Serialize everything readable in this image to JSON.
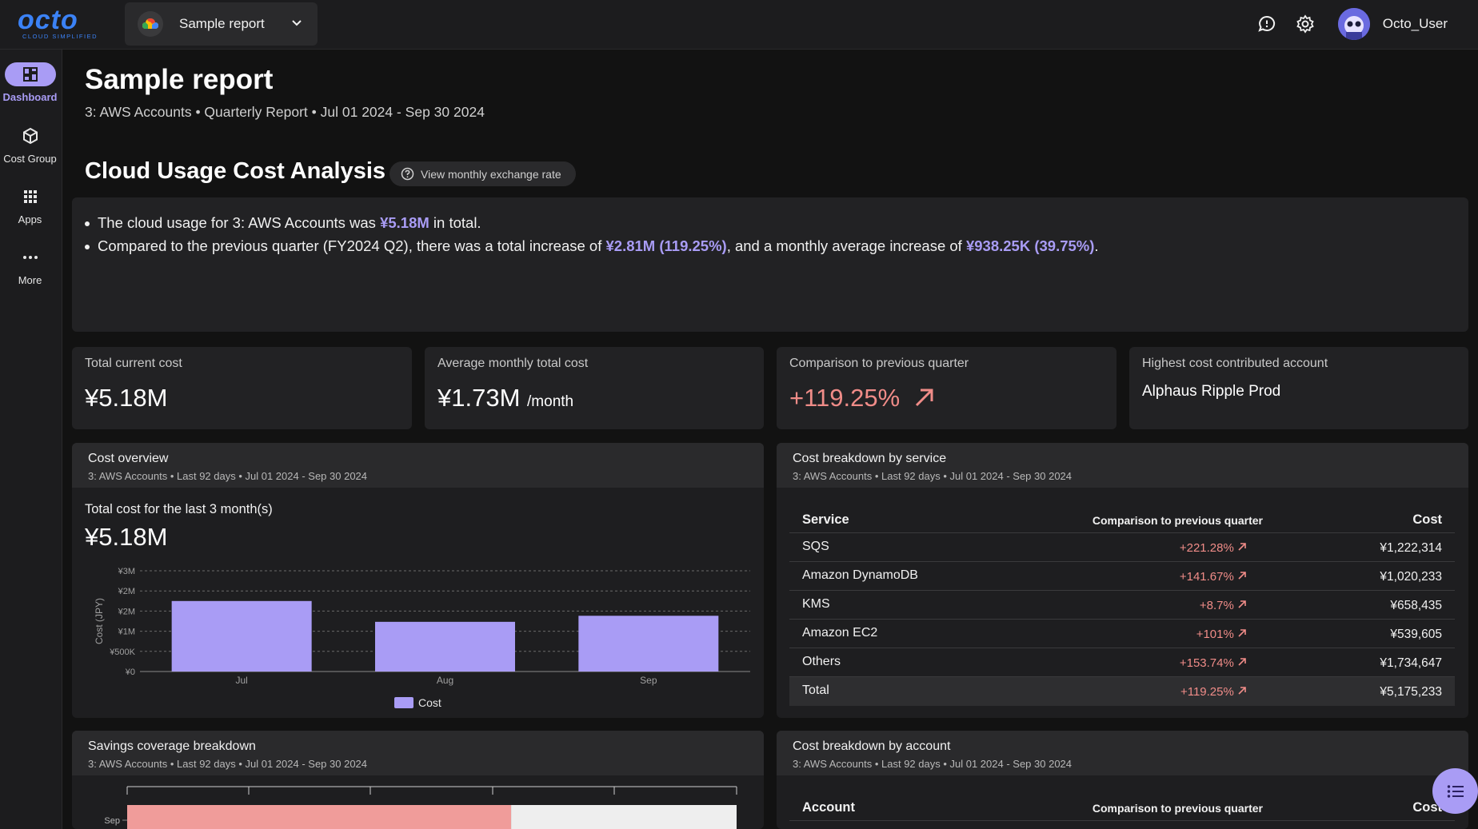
{
  "app": {
    "logo_text": "octo",
    "logo_tagline": "CLOUD SIMPLIFIED",
    "report_selector": "Sample report",
    "user_name": "Octo_User"
  },
  "nav": [
    {
      "label": "Dashboard",
      "icon": "dashboard-icon",
      "active": true
    },
    {
      "label": "Cost Group",
      "icon": "cube-icon",
      "active": false
    },
    {
      "label": "Apps",
      "icon": "apps-grid-icon",
      "active": false
    },
    {
      "label": "More",
      "icon": "more-dots-icon",
      "active": false
    }
  ],
  "header": {
    "title": "Sample report",
    "subtitle": "3: AWS Accounts • Quarterly Report • Jul 01 2024 - Sep 30 2024"
  },
  "analysis": {
    "title": "Cloud Usage Cost Analysis",
    "exchange_button": "View monthly exchange rate",
    "line1": {
      "pre": "The cloud usage for 3: AWS Accounts was ",
      "hl": "¥5.18M",
      "post": " in total."
    },
    "line2": {
      "pre": "Compared to the previous quarter (FY2024 Q2), there was a total increase of ",
      "hl1": "¥2.81M (119.25%)",
      "mid": ", and a monthly average increase of ",
      "hl2": "¥938.25K (39.75%)",
      "post": "."
    }
  },
  "kpis": {
    "total": {
      "label": "Total current cost",
      "value": "¥5.18M"
    },
    "average": {
      "label": "Average monthly total cost",
      "value": "¥1.73M",
      "unit": "/month"
    },
    "comparison": {
      "label": "Comparison to previous quarter",
      "value": "+119.25%"
    },
    "highest": {
      "label": "Highest cost contributed account",
      "value": "Alphaus Ripple Prod"
    }
  },
  "cost_overview": {
    "title": "Cost overview",
    "subtitle": "3: AWS Accounts • Last 92 days • Jul 01 2024 - Sep 30 2024",
    "total_label": "Total cost for the last 3 month(s)",
    "total_value": "¥5.18M"
  },
  "chart_data": {
    "type": "bar",
    "categories": [
      "Jul",
      "Aug",
      "Sep"
    ],
    "series": [
      {
        "name": "Cost",
        "values": [
          2100000,
          1480000,
          1660000
        ]
      }
    ],
    "ylabel": "Cost (JPY)",
    "ylim": [
      0,
      3000000
    ],
    "yticks": [
      "¥0",
      "¥500K",
      "¥1M",
      "¥2M",
      "¥2M",
      "¥3M"
    ],
    "grid": true,
    "legend": "bottom",
    "color": "#a99cf5"
  },
  "service_breakdown": {
    "title": "Cost breakdown by service",
    "subtitle": "3: AWS Accounts • Last 92 days • Jul 01 2024 - Sep 30 2024",
    "columns": [
      "Service",
      "Comparison to previous quarter",
      "Cost"
    ],
    "rows": [
      {
        "service": "SQS",
        "change": "+221.28%",
        "cost": "¥1,222,314"
      },
      {
        "service": "Amazon DynamoDB",
        "change": "+141.67%",
        "cost": "¥1,020,233"
      },
      {
        "service": "KMS",
        "change": "+8.7%",
        "cost": "¥658,435"
      },
      {
        "service": "Amazon EC2",
        "change": "+101%",
        "cost": "¥539,605"
      },
      {
        "service": "Others",
        "change": "+153.74%",
        "cost": "¥1,734,647"
      }
    ],
    "total": {
      "service": "Total",
      "change": "+119.25%",
      "cost": "¥5,175,233"
    }
  },
  "savings": {
    "title": "Savings coverage breakdown",
    "subtitle": "3: AWS Accounts • Last 92 days • Jul 01 2024 - Sep 30 2024",
    "row_label": "Sep",
    "covered_fraction": 0.63
  },
  "account_breakdown": {
    "title": "Cost breakdown by account",
    "subtitle": "3: AWS Accounts • Last 92 days • Jul 01 2024 - Sep 30 2024",
    "columns": [
      "Account",
      "Comparison to previous quarter",
      "Cost"
    ]
  },
  "colors": {
    "accent": "#a99cf5",
    "increase": "#f08c88",
    "brand": "#3b82f6"
  }
}
